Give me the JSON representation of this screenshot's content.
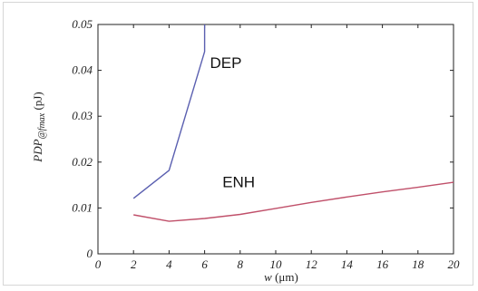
{
  "chart_data": {
    "type": "line",
    "title": "",
    "xlabel_var": "w",
    "xlabel_unit": " (μm)",
    "ylabel_main": "PDP",
    "ylabel_sub": "@fmax",
    "ylabel_unit": " (pJ)",
    "xlim": [
      0,
      20
    ],
    "ylim": [
      0,
      0.05
    ],
    "xticks": [
      "0",
      "2",
      "4",
      "6",
      "8",
      "10",
      "12",
      "14",
      "16",
      "18",
      "20"
    ],
    "yticks": [
      "0",
      "0.01",
      "0.02",
      "0.03",
      "0.04",
      "0.05"
    ],
    "grid": false,
    "legend": "none",
    "series": [
      {
        "name": "DEP",
        "color": "#5a5fb0",
        "x": [
          2,
          4,
          6,
          6
        ],
        "y": [
          0.0121,
          0.0182,
          0.0441,
          0.05
        ]
      },
      {
        "name": "ENH",
        "color": "#c0506a",
        "x": [
          2,
          4,
          6,
          8,
          10,
          12,
          14,
          16,
          18,
          20
        ],
        "y": [
          0.0085,
          0.0071,
          0.0077,
          0.0086,
          0.0099,
          0.0112,
          0.0124,
          0.0135,
          0.0145,
          0.0156
        ]
      }
    ],
    "annotations": [
      {
        "text": "DEP",
        "x": 6.3,
        "y": 0.0405
      },
      {
        "text": "ENH",
        "x": 7.0,
        "y": 0.0145
      }
    ]
  }
}
